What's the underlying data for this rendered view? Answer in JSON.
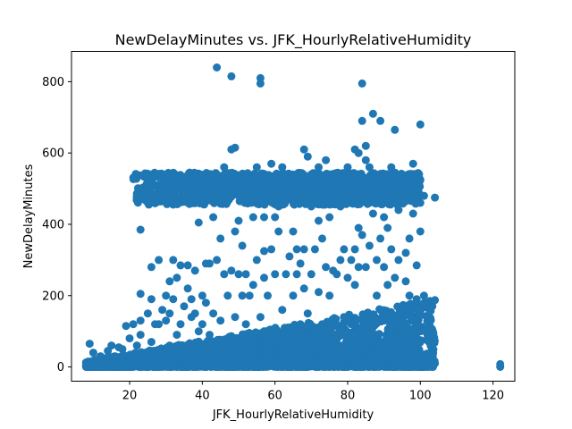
{
  "chart_data": {
    "type": "scatter",
    "title": "NewDelayMinutes vs. JFK_HourlyRelativeHumidity",
    "xlabel": "JFK_HourlyRelativeHumidity",
    "ylabel": "NewDelayMinutes",
    "xlim": [
      4,
      126
    ],
    "ylim": [
      -40,
      885
    ],
    "x_ticks": [
      20,
      40,
      60,
      80,
      100,
      120
    ],
    "y_ticks": [
      0,
      200,
      400,
      600,
      800
    ],
    "grid": false,
    "legend": "none",
    "color": "#1f77b4",
    "points": [
      [
        8,
        0
      ],
      [
        9,
        2
      ],
      [
        9,
        65
      ],
      [
        10,
        10
      ],
      [
        10,
        40
      ],
      [
        11,
        5
      ],
      [
        11,
        20
      ],
      [
        12,
        0
      ],
      [
        12,
        30
      ],
      [
        13,
        8
      ],
      [
        14,
        15
      ],
      [
        14,
        45
      ],
      [
        15,
        60
      ],
      [
        16,
        5
      ],
      [
        16,
        30
      ],
      [
        17,
        0
      ],
      [
        17,
        55
      ],
      [
        18,
        20
      ],
      [
        18,
        50
      ],
      [
        19,
        10
      ],
      [
        19,
        115
      ],
      [
        20,
        0
      ],
      [
        20,
        80
      ],
      [
        21,
        35
      ],
      [
        21,
        120
      ],
      [
        22,
        60
      ],
      [
        22,
        475
      ],
      [
        23,
        90
      ],
      [
        23,
        205
      ],
      [
        23,
        385
      ],
      [
        23,
        130
      ],
      [
        24,
        20
      ],
      [
        24,
        470
      ],
      [
        25,
        0
      ],
      [
        25,
        460
      ],
      [
        25,
        150
      ],
      [
        26,
        190
      ],
      [
        26,
        280
      ],
      [
        26,
        70
      ],
      [
        27,
        120
      ],
      [
        27,
        535
      ],
      [
        28,
        40
      ],
      [
        28,
        300
      ],
      [
        28,
        120
      ],
      [
        29,
        160
      ],
      [
        30,
        10
      ],
      [
        30,
        200
      ],
      [
        30,
        130
      ],
      [
        31,
        60
      ],
      [
        31,
        240
      ],
      [
        31,
        150
      ],
      [
        32,
        20
      ],
      [
        32,
        300
      ],
      [
        32,
        190
      ],
      [
        33,
        250
      ],
      [
        33,
        90
      ],
      [
        34,
        285
      ],
      [
        34,
        120
      ],
      [
        35,
        170
      ],
      [
        35,
        10
      ],
      [
        36,
        220
      ],
      [
        36,
        285
      ],
      [
        36,
        60
      ],
      [
        37,
        140
      ],
      [
        37,
        190
      ],
      [
        38,
        20
      ],
      [
        38,
        270
      ],
      [
        38,
        150
      ],
      [
        39,
        100
      ],
      [
        39,
        405
      ],
      [
        40,
        200
      ],
      [
        40,
        30
      ],
      [
        40,
        120
      ],
      [
        41,
        290
      ],
      [
        41,
        180
      ],
      [
        42,
        60
      ],
      [
        42,
        290
      ],
      [
        42,
        90
      ],
      [
        43,
        420
      ],
      [
        43,
        150
      ],
      [
        44,
        840
      ],
      [
        44,
        10
      ],
      [
        44,
        300
      ],
      [
        45,
        460
      ],
      [
        45,
        360
      ],
      [
        45,
        130
      ],
      [
        46,
        260
      ],
      [
        46,
        560
      ],
      [
        47,
        200
      ],
      [
        47,
        80
      ],
      [
        48,
        815
      ],
      [
        48,
        610
      ],
      [
        48,
        270
      ],
      [
        49,
        615
      ],
      [
        49,
        380
      ],
      [
        49,
        140
      ],
      [
        50,
        410
      ],
      [
        50,
        260
      ],
      [
        50,
        40
      ],
      [
        51,
        200
      ],
      [
        51,
        340
      ],
      [
        52,
        260
      ],
      [
        52,
        120
      ],
      [
        53,
        200
      ],
      [
        53,
        30
      ],
      [
        54,
        230
      ],
      [
        54,
        420
      ],
      [
        55,
        560
      ],
      [
        55,
        300
      ],
      [
        56,
        810
      ],
      [
        56,
        795
      ],
      [
        56,
        520
      ],
      [
        56,
        140
      ],
      [
        57,
        420
      ],
      [
        57,
        325
      ],
      [
        57,
        250
      ],
      [
        58,
        200
      ],
      [
        58,
        60
      ],
      [
        59,
        570
      ],
      [
        59,
        330
      ],
      [
        60,
        260
      ],
      [
        60,
        420
      ],
      [
        60,
        100
      ],
      [
        61,
        450
      ],
      [
        61,
        380
      ],
      [
        62,
        560
      ],
      [
        62,
        160
      ],
      [
        63,
        260
      ],
      [
        63,
        40
      ],
      [
        64,
        470
      ],
      [
        64,
        310
      ],
      [
        65,
        380
      ],
      [
        65,
        200
      ],
      [
        66,
        260
      ],
      [
        66,
        330
      ],
      [
        67,
        120
      ],
      [
        67,
        290
      ],
      [
        68,
        610
      ],
      [
        68,
        330
      ],
      [
        68,
        220
      ],
      [
        69,
        590
      ],
      [
        69,
        150
      ],
      [
        70,
        260
      ],
      [
        70,
        450
      ],
      [
        71,
        330
      ],
      [
        71,
        80
      ],
      [
        72,
        410
      ],
      [
        72,
        560
      ],
      [
        72,
        210
      ],
      [
        73,
        360
      ],
      [
        73,
        120
      ],
      [
        74,
        580
      ],
      [
        74,
        280
      ],
      [
        75,
        420
      ],
      [
        75,
        200
      ],
      [
        76,
        270
      ],
      [
        76,
        120
      ],
      [
        77,
        260
      ],
      [
        77,
        20
      ],
      [
        78,
        300
      ],
      [
        78,
        450
      ],
      [
        79,
        330
      ],
      [
        79,
        140
      ],
      [
        80,
        250
      ],
      [
        80,
        560
      ],
      [
        81,
        300
      ],
      [
        81,
        120
      ],
      [
        82,
        610
      ],
      [
        82,
        330
      ],
      [
        82,
        230
      ],
      [
        83,
        390
      ],
      [
        83,
        600
      ],
      [
        83,
        280
      ],
      [
        84,
        795
      ],
      [
        84,
        690
      ],
      [
        84,
        520
      ],
      [
        84,
        370
      ],
      [
        85,
        620
      ],
      [
        85,
        580
      ],
      [
        85,
        280
      ],
      [
        86,
        560
      ],
      [
        86,
        340
      ],
      [
        86,
        140
      ],
      [
        87,
        710
      ],
      [
        87,
        430
      ],
      [
        88,
        300
      ],
      [
        88,
        200
      ],
      [
        89,
        690
      ],
      [
        89,
        360
      ],
      [
        90,
        420
      ],
      [
        90,
        280
      ],
      [
        91,
        390
      ],
      [
        91,
        230
      ],
      [
        92,
        560
      ],
      [
        92,
        330
      ],
      [
        93,
        665
      ],
      [
        93,
        250
      ],
      [
        94,
        440
      ],
      [
        94,
        300
      ],
      [
        95,
        540
      ],
      [
        95,
        160
      ],
      [
        96,
        320
      ],
      [
        96,
        240
      ],
      [
        97,
        200
      ],
      [
        97,
        360
      ],
      [
        98,
        570
      ],
      [
        98,
        430
      ],
      [
        99,
        285
      ],
      [
        99,
        190
      ],
      [
        100,
        680
      ],
      [
        100,
        460
      ],
      [
        100,
        380
      ],
      [
        100,
        100
      ],
      [
        101,
        480
      ],
      [
        101,
        200
      ],
      [
        102,
        5
      ],
      [
        103,
        0
      ],
      [
        104,
        475
      ],
      [
        104,
        10
      ],
      [
        122,
        0
      ],
      [
        122,
        8
      ]
    ],
    "upper_band": {
      "x_range": [
        21,
        100
      ],
      "y_range": [
        455,
        545
      ]
    },
    "lower_mass": {
      "x_range": [
        8,
        104
      ],
      "y_max_min": 15,
      "y_max_max": 190
    }
  }
}
